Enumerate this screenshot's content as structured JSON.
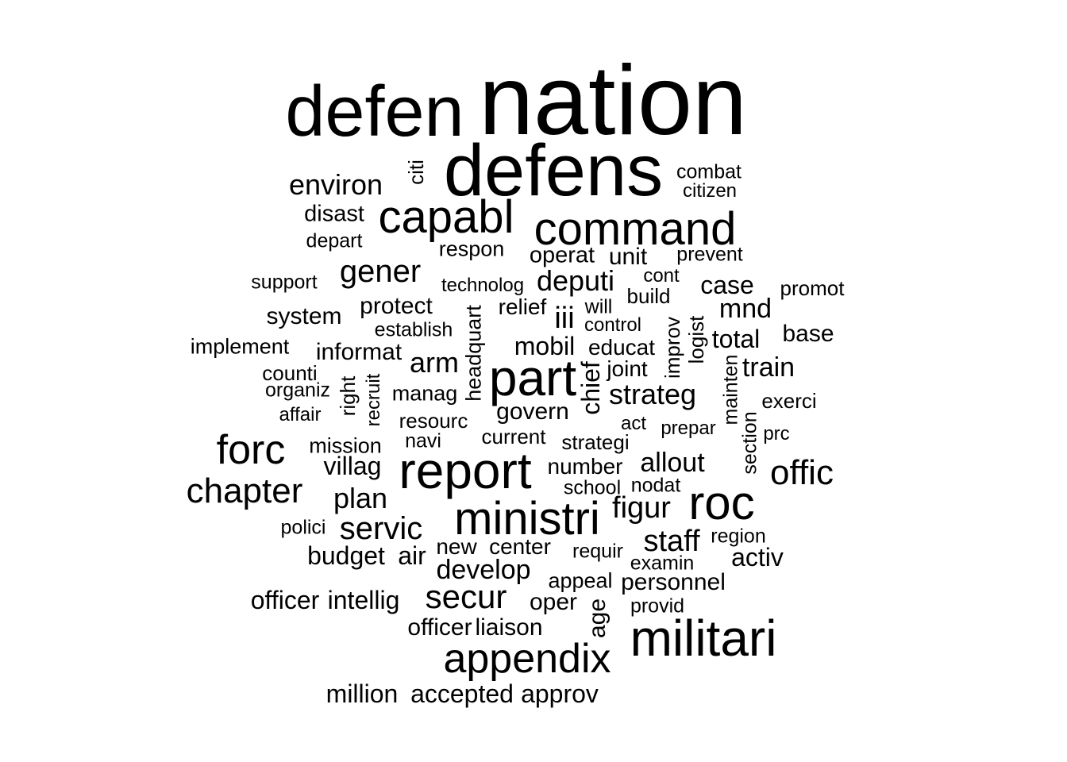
{
  "cloud": {
    "color": "#000000",
    "background": "#ffffff",
    "words": [
      "nation",
      "defen",
      "defens",
      "command",
      "capabl",
      "environ",
      "citi",
      "combat",
      "citizen",
      "disast",
      "depart",
      "respon",
      "operat",
      "unit",
      "prevent",
      "support",
      "gener",
      "technolog",
      "deputi",
      "cont",
      "case",
      "promot",
      "protect",
      "relief",
      "will",
      "build",
      "mnd",
      "system",
      "establish",
      "iii",
      "control",
      "base",
      "implement",
      "informat",
      "mobil",
      "educat",
      "total",
      "logist",
      "improv",
      "counti",
      "arm",
      "part",
      "joint",
      "train",
      "organiz",
      "right",
      "recruit",
      "manag",
      "headquart",
      "chief",
      "strateg",
      "mainten",
      "exerci",
      "affair",
      "resourc",
      "govern",
      "act",
      "prepar",
      "prc",
      "forc",
      "mission",
      "navi",
      "current",
      "strategi",
      "section",
      "villag",
      "report",
      "number",
      "allout",
      "offic",
      "chapter",
      "plan",
      "school",
      "nodat",
      "ministri",
      "figur",
      "roc",
      "polici",
      "servic",
      "staff",
      "region",
      "new",
      "center",
      "requir",
      "budget",
      "air",
      "activ",
      "develop",
      "examin",
      "appeal",
      "personnel",
      "officer",
      "intellig",
      "secur",
      "oper",
      "provid",
      "age",
      "militari",
      "liaison",
      "appendix",
      "million",
      "accepted",
      "approv"
    ]
  }
}
